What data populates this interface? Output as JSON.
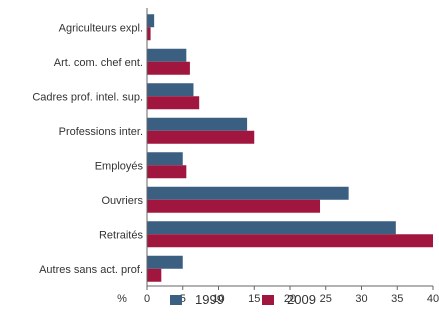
{
  "chart_data": {
    "type": "bar",
    "orientation": "horizontal",
    "categories": [
      "Agriculteurs expl.",
      "Art. com. chef ent.",
      "Cadres prof. intel. sup.",
      "Professions inter.",
      "Employés",
      "Ouvriers",
      "Retraités",
      "Autres sans act. prof."
    ],
    "series": [
      {
        "name": "1999",
        "color": "#3a5f80",
        "values": [
          1,
          5.5,
          6.5,
          14,
          5,
          28.2,
          34.8,
          5
        ]
      },
      {
        "name": "2009",
        "color": "#a0163e",
        "values": [
          0.5,
          6,
          7.3,
          15,
          5.5,
          24.2,
          40,
          2
        ]
      }
    ],
    "x_unit_label": "%",
    "xticks": [
      0,
      5,
      10,
      15,
      20,
      25,
      30,
      35,
      40
    ],
    "xlim": [
      0,
      40
    ],
    "grid": false,
    "legend_position": "bottom"
  }
}
